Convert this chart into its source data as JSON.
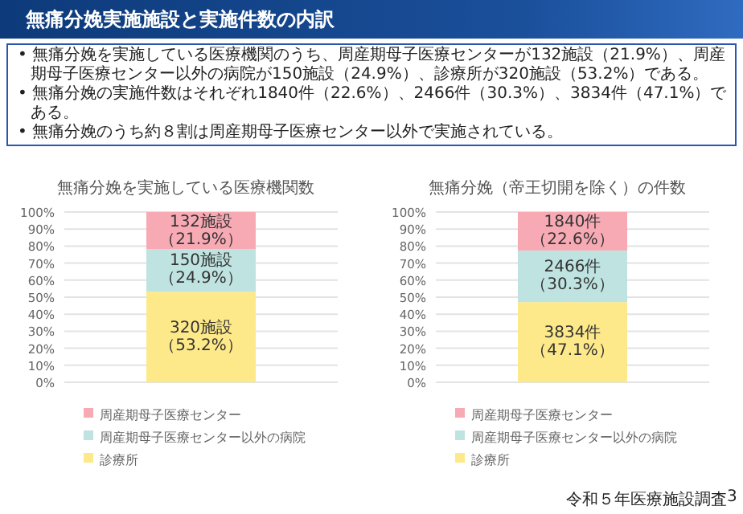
{
  "chart_data": [
    {
      "type": "bar",
      "stacked": true,
      "title": "無痛分娩を実施している医療機関数",
      "categories": [
        null
      ],
      "annotations": [
        "無痛分娩実施施設と実施件数の内訳",
        "• 無痛分娩を実施している医療機関のうち、周産期母子医療センターが132施設（21.9%）、周産期母子医療センター以外の病院が150施設（24.9%）、診療所が320施設（53.2%）である。",
        "• 無痛分娩の実施件数はそれぞれ1840件（22.6%）、2466件（30.3%）、3834件（47.1%）である。",
        "• 無痛分娩のうち約８割は周産期母子医療センター以外で実施されている。"
      ],
      "series": [
        {
          "name": "診療所",
          "color": "#fde98a",
          "values": [
            53.2
          ],
          "value_labels": [
            "320施設（53.2%）"
          ]
        },
        {
          "name": "周産期母子医療センター以外の病院",
          "color": "#bfe3e0",
          "values": [
            24.9
          ],
          "value_labels": [
            "150施設（24.9%）"
          ]
        },
        {
          "name": "周産期母子医療センター",
          "color": "#f7aab4",
          "values": [
            21.9
          ],
          "value_labels": [
            "132施設（21.9%）"
          ]
        }
      ],
      "ylim": [
        0,
        100
      ],
      "yticks": [
        {
          "value": 0,
          "label": "0%"
        },
        {
          "value": 10,
          "label": "10%"
        },
        {
          "value": 20,
          "label": "20%"
        },
        {
          "value": 30,
          "label": "30%"
        },
        {
          "value": 40,
          "label": "40%"
        },
        {
          "value": 50,
          "label": "50%"
        },
        {
          "value": 60,
          "label": "60%"
        },
        {
          "value": 70,
          "label": "70%"
        },
        {
          "value": 80,
          "label": "80%"
        },
        {
          "value": 90,
          "label": "90%"
        },
        {
          "value": 100,
          "label": "100%"
        }
      ],
      "grid": "y",
      "legend": "bottom"
    },
    {
      "type": "bar",
      "stacked": true,
      "title": "無痛分娩（帝王切開を除く）の件数",
      "categories": [
        null
      ],
      "annotations": [
        "令和５年医療施設調査",
        "3"
      ],
      "series": [
        {
          "name": "診療所",
          "color": "#fde98a",
          "values": [
            47.1
          ],
          "value_labels": [
            "3834件（47.1%）"
          ]
        },
        {
          "name": "周産期母子医療センター以外の病院",
          "color": "#bfe3e0",
          "values": [
            30.3
          ],
          "value_labels": [
            "2466件（30.3%）"
          ]
        },
        {
          "name": "周産期母子医療センター",
          "color": "#f7aab4",
          "values": [
            22.6
          ],
          "value_labels": [
            "1840件（22.6%）"
          ]
        }
      ],
      "ylim": [
        0,
        100
      ],
      "yticks": [
        {
          "value": 0,
          "label": "0%"
        },
        {
          "value": 10,
          "label": "10%"
        },
        {
          "value": 20,
          "label": "20%"
        },
        {
          "value": 30,
          "label": "30%"
        },
        {
          "value": 40,
          "label": "40%"
        },
        {
          "value": 50,
          "label": "50%"
        },
        {
          "value": 60,
          "label": "60%"
        },
        {
          "value": 70,
          "label": "70%"
        },
        {
          "value": 80,
          "label": "80%"
        },
        {
          "value": 90,
          "label": "90%"
        },
        {
          "value": 100,
          "label": "100%"
        }
      ],
      "grid": "y",
      "legend": "bottom"
    }
  ]
}
